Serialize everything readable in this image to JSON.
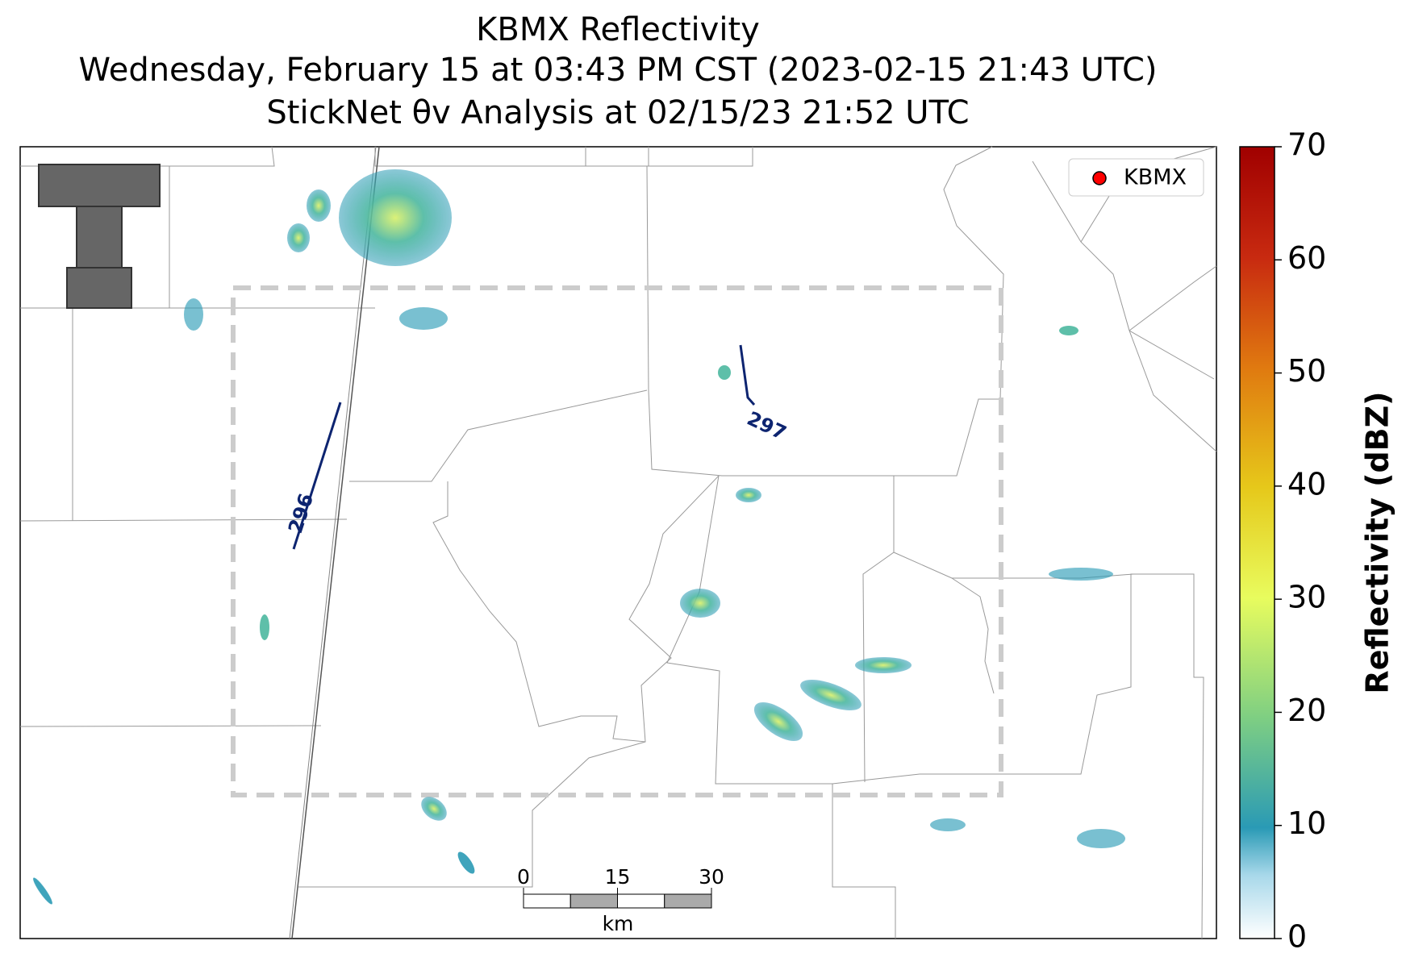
{
  "title": [
    "KBMX Reflectivity",
    "Wednesday, February 15 at 03:43 PM CST (2023-02-15 21:43 UTC)",
    "StickNet θv Analysis at 02/15/23 21:52 UTC"
  ],
  "colorbar": {
    "label": "Reflectivity (dBZ)",
    "lim": [
      0,
      70
    ],
    "ticks": [
      0,
      10,
      20,
      30,
      40,
      50,
      60,
      70
    ]
  },
  "legend": {
    "label": "KBMX",
    "color": "#ff0000"
  },
  "contours": [
    {
      "label": 296
    },
    {
      "label": 297
    }
  ],
  "scale_bar": {
    "lim": [
      0,
      30
    ],
    "ticks": [
      0,
      15,
      30
    ],
    "unit": "km"
  }
}
